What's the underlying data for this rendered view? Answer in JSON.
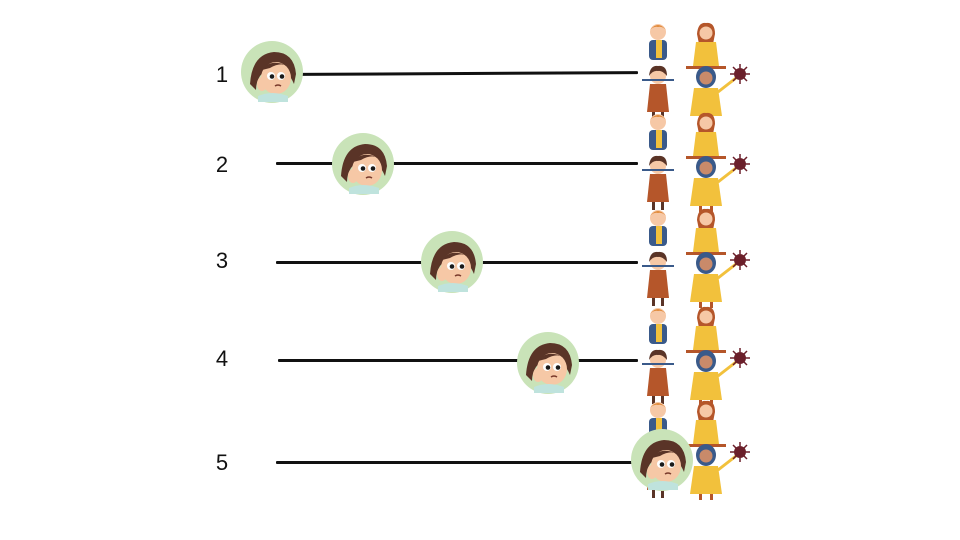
{
  "rows": [
    {
      "label": "1"
    },
    {
      "label": "2"
    },
    {
      "label": "3"
    },
    {
      "label": "4"
    },
    {
      "label": "5"
    }
  ],
  "colors": {
    "line": "#111111",
    "avatar_bg": "#c9e3b8",
    "hair": "#5a3427",
    "skin": "#f6c8a6",
    "shirt": "#bfe3dd",
    "yellow_dress": "#f2c13c",
    "blue_outfit": "#3a5a8a",
    "brown_dress": "#b5562a",
    "orange_hair": "#e08a3a",
    "virus": "#6b1f2a"
  },
  "icons": {
    "avatar": "worried-girl-avatar-icon",
    "crowd": "group-of-children-icon"
  }
}
